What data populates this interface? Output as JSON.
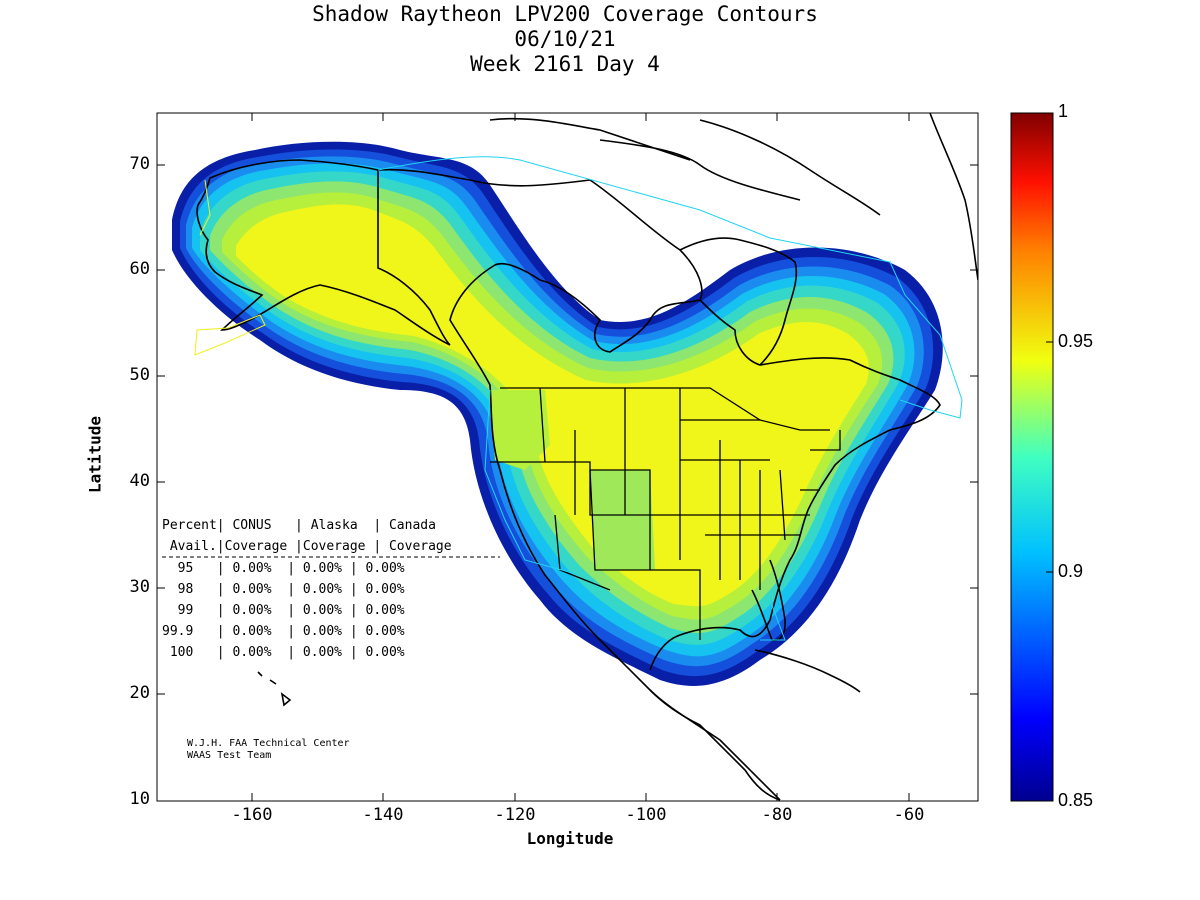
{
  "title": {
    "line1": "Shadow Raytheon LPV200 Coverage Contours",
    "line2": "06/10/21",
    "line3": "Week 2161 Day 4"
  },
  "axes": {
    "xlabel": "Longitude",
    "ylabel": "Latitude",
    "xticks": [
      "-160",
      "-140",
      "-120",
      "-100",
      "-80",
      "-60"
    ],
    "yticks": [
      "70",
      "60",
      "50",
      "40",
      "30",
      "20",
      "10"
    ]
  },
  "colorbar": {
    "ticks": [
      "1",
      "0.95",
      "0.9",
      "0.85"
    ],
    "range": [
      0.85,
      1
    ]
  },
  "table": {
    "header1": "Percent| CONUS   | Alaska  | Canada",
    "header2": " Avail.|Coverage |Coverage | Coverage",
    "rows": [
      "  95   | 0.00%  | 0.00% | 0.00%",
      "  98   | 0.00%  | 0.00% | 0.00%",
      "  99   | 0.00%  | 0.00% | 0.00%",
      "99.9   | 0.00%  | 0.00% | 0.00%",
      " 100   | 0.00%  | 0.00% | 0.00%"
    ]
  },
  "credit": {
    "line1": "W.J.H. FAA Technical Center",
    "line2": "WAAS Test Team"
  },
  "map": {
    "xlim": [
      -175,
      -50
    ],
    "ylim": [
      10,
      75
    ]
  },
  "colors": {
    "yellow": "#f0f51a",
    "lime": "#b6f03c",
    "green": "#8ce670",
    "cyan_green": "#35d8c8",
    "cyan": "#16c2f0",
    "sky": "#1a8cf0",
    "blue": "#1450dc",
    "navy": "#0a1fa8"
  }
}
